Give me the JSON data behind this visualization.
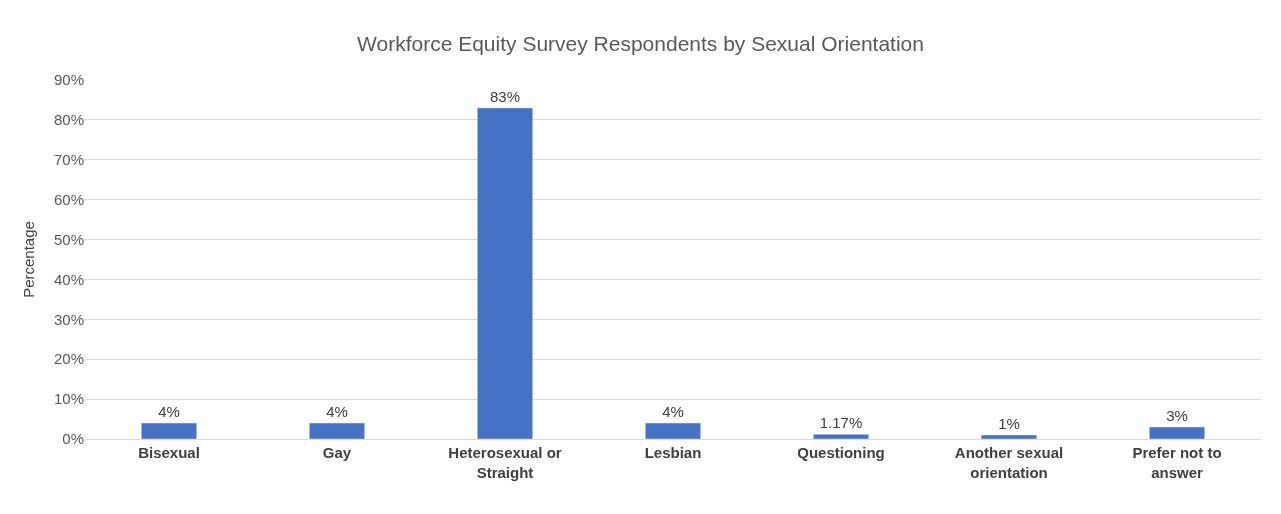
{
  "chart_data": {
    "type": "bar",
    "title": "Workforce Equity Survey Respondents by Sexual Orientation",
    "ylabel": "Percentage",
    "categories": [
      "Bisexual",
      "Gay",
      "Heterosexual or Straight",
      "Lesbian",
      "Questioning",
      "Another sexual orientation",
      "Prefer not to answer"
    ],
    "values": [
      4,
      4,
      83,
      4,
      1.17,
      1,
      3
    ],
    "value_labels": [
      "4%",
      "4%",
      "83%",
      "4%",
      "1.17%",
      "1%",
      "3%"
    ],
    "color": "#4472c4",
    "ylim": [
      0,
      90
    ],
    "yticks": [
      {
        "value": 0,
        "label": "0%"
      },
      {
        "value": 10,
        "label": "10%"
      },
      {
        "value": 20,
        "label": "20%"
      },
      {
        "value": 30,
        "label": "30%"
      },
      {
        "value": 40,
        "label": "40%"
      },
      {
        "value": 50,
        "label": "50%"
      },
      {
        "value": 60,
        "label": "60%"
      },
      {
        "value": 70,
        "label": "70%"
      },
      {
        "value": 80,
        "label": "80%"
      },
      {
        "value": 90,
        "label": "90%"
      }
    ],
    "grid": "y",
    "legend": false
  }
}
